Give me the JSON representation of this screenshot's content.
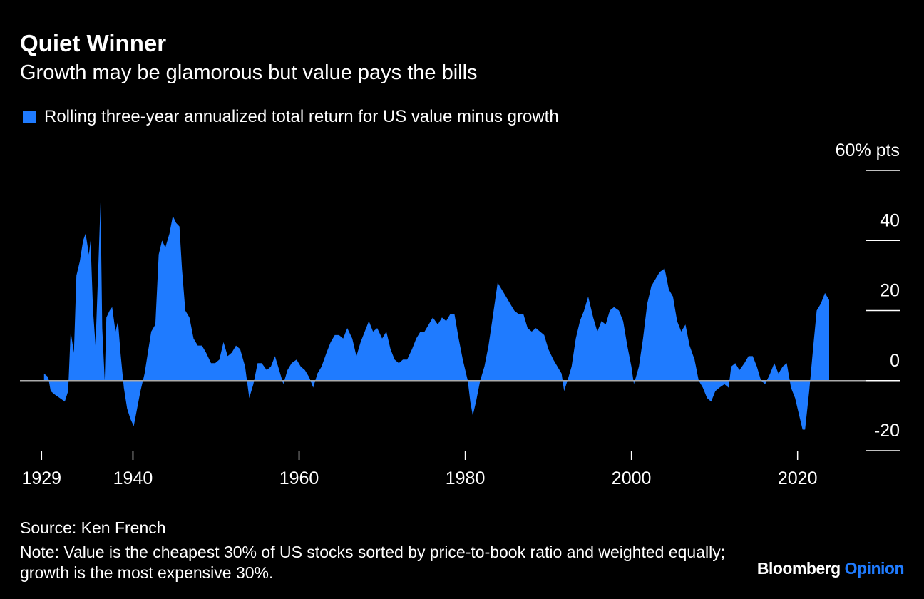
{
  "chart_data": {
    "type": "area",
    "title": "Quiet Winner",
    "subtitle": "Growth may be glamorous but value pays the bills",
    "source": "Source: Ken French",
    "note": "Note: Value is the cheapest 30% of US stocks sorted by price-to-book ratio and weighted equally; growth is the most expensive 30%.",
    "brand": {
      "name": "Bloomberg",
      "section": "Opinion"
    },
    "x": [
      1929.3,
      1929.8,
      1930.1,
      1930.6,
      1931.2,
      1931.8,
      1932.2,
      1932.5,
      1932.9,
      1933.2,
      1933.6,
      1934.0,
      1934.3,
      1934.7,
      1934.9,
      1935.2,
      1935.5,
      1935.8,
      1936.1,
      1936.3,
      1936.6,
      1936.8,
      1937.2,
      1937.5,
      1937.9,
      1938.2,
      1938.5,
      1938.9,
      1939.3,
      1939.7,
      1940.1,
      1940.5,
      1940.9,
      1941.4,
      1941.8,
      1942.2,
      1942.7,
      1943.1,
      1943.5,
      1943.9,
      1944.4,
      1944.8,
      1945.2,
      1945.6,
      1945.9,
      1946.3,
      1946.8,
      1947.3,
      1947.8,
      1948.3,
      1948.8,
      1949.4,
      1949.9,
      1950.4,
      1950.9,
      1951.4,
      1951.9,
      1952.4,
      1952.9,
      1953.5,
      1954.0,
      1954.5,
      1955.0,
      1955.5,
      1956.1,
      1956.6,
      1957.1,
      1957.6,
      1958.1,
      1958.6,
      1959.1,
      1959.7,
      1960.2,
      1960.7,
      1961.2,
      1961.7,
      1962.2,
      1962.7,
      1963.3,
      1963.8,
      1964.3,
      1964.8,
      1965.3,
      1965.8,
      1966.4,
      1966.9,
      1967.4,
      1967.9,
      1968.4,
      1968.9,
      1969.4,
      1970.0,
      1970.5,
      1971.0,
      1971.5,
      1972.0,
      1972.5,
      1973.0,
      1973.6,
      1974.1,
      1974.6,
      1975.1,
      1975.6,
      1976.1,
      1976.7,
      1977.2,
      1977.7,
      1978.2,
      1978.7,
      1979.2,
      1979.7,
      1980.3,
      1980.6,
      1980.9,
      1981.3,
      1981.8,
      1982.3,
      1982.8,
      1983.3,
      1983.9,
      1984.4,
      1984.9,
      1985.4,
      1985.9,
      1986.4,
      1987.0,
      1987.5,
      1988.0,
      1988.5,
      1989.0,
      1989.5,
      1990.0,
      1990.6,
      1991.1,
      1991.6,
      1991.9,
      1992.3,
      1992.8,
      1993.3,
      1993.8,
      1994.3,
      1994.8,
      1995.4,
      1995.9,
      1996.4,
      1996.9,
      1997.4,
      1997.9,
      1998.5,
      1999.0,
      1999.5,
      2000.0,
      2000.3,
      2000.9,
      2001.4,
      2001.9,
      2002.4,
      2002.9,
      2003.4,
      2004.0,
      2004.5,
      2005.0,
      2005.5,
      2006.0,
      2006.5,
      2007.0,
      2007.6,
      2008.1,
      2008.6,
      2009.1,
      2009.6,
      2010.1,
      2010.6,
      2011.2,
      2011.7,
      2012.0,
      2012.5,
      2013.0,
      2013.6,
      2014.1,
      2014.6,
      2015.1,
      2015.6,
      2016.1,
      2016.7,
      2017.2,
      2017.7,
      2018.2,
      2018.7,
      2019.2,
      2019.7,
      2020.2,
      2020.6,
      2020.9,
      2021.4,
      2021.9,
      2022.3,
      2022.8,
      2023.3,
      2023.8
    ],
    "series": [
      {
        "name": "Rolling three-year annualized total return for US value minus growth",
        "color": "#1f7bff",
        "values": [
          2,
          1,
          -3,
          -4,
          -5,
          -6,
          -3,
          14,
          8,
          30,
          34,
          40,
          42,
          36,
          40,
          20,
          10,
          30,
          51,
          15,
          0,
          18,
          20,
          21,
          14,
          17,
          8,
          -2,
          -8,
          -11,
          -13,
          -8,
          -3,
          2,
          8,
          14,
          16,
          36,
          40,
          38,
          42,
          47,
          45,
          44,
          32,
          20,
          18,
          12,
          10,
          10,
          8,
          5,
          5,
          6,
          11,
          7,
          8,
          10,
          9,
          4,
          -5,
          -1,
          5,
          5,
          3,
          4,
          7,
          3,
          -1,
          3,
          5,
          6,
          4,
          3,
          1,
          -2,
          2,
          4,
          8,
          11,
          13,
          13,
          12,
          15,
          12,
          7,
          11,
          14,
          17,
          14,
          15,
          12,
          14,
          9,
          6,
          5,
          6,
          6,
          9,
          12,
          14,
          14,
          16,
          18,
          16,
          18,
          17,
          19,
          19,
          12,
          6,
          0,
          -6,
          -10,
          -6,
          0,
          4,
          10,
          18,
          28,
          26,
          24,
          22,
          20,
          19,
          19,
          15,
          14,
          15,
          14,
          13,
          9,
          6,
          4,
          2,
          -3,
          0,
          4,
          12,
          17,
          20,
          24,
          18,
          14,
          17,
          16,
          20,
          21,
          20,
          17,
          10,
          4,
          -1,
          4,
          12,
          22,
          27,
          29,
          31,
          32,
          26,
          24,
          17,
          14,
          16,
          10,
          6,
          0,
          -2,
          -5,
          -6,
          -3,
          -2,
          -1,
          -2,
          4,
          5,
          3,
          5,
          7,
          7,
          4,
          0,
          -1,
          2,
          5,
          2,
          4,
          5,
          -2,
          -5,
          -10,
          -14,
          -14,
          -3,
          10,
          20,
          22,
          25,
          23
        ]
      }
    ],
    "xlim": [
      1926.4,
      2032.3
    ],
    "ylim": [
      -20,
      60
    ],
    "xticks": [
      1929,
      1940,
      1960,
      1980,
      2000,
      2020
    ],
    "yticks": [
      -20,
      0,
      20,
      40,
      {
        "value": 60,
        "label": "60% pts"
      }
    ],
    "legend": "top-left"
  }
}
